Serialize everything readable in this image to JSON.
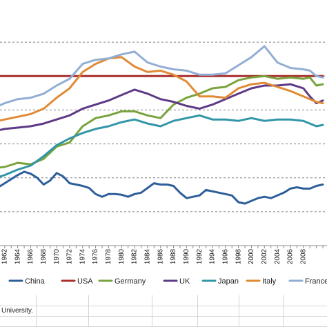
{
  "chart_data": {
    "type": "line",
    "title": "",
    "xlabel": "",
    "ylabel": "",
    "xlim": [
      1960,
      2011
    ],
    "x_tick_labels": [
      "1962",
      "1964",
      "1966",
      "1968",
      "1970",
      "1972",
      "1974",
      "1976",
      "1978",
      "1980",
      "1982",
      "1984",
      "1986",
      "1988",
      "1990",
      "1992",
      "1994",
      "1996",
      "1998",
      "2000",
      "2002",
      "2004",
      "2006",
      "2008"
    ],
    "grid": true,
    "legend_position": "bottom",
    "series": [
      {
        "name": "China",
        "color": "#2e5f9a",
        "x": [
          1960,
          1961,
          1962,
          1963,
          1964,
          1965,
          1966,
          1967,
          1968,
          1969,
          1970,
          1971,
          1972,
          1973,
          1974,
          1975,
          1976,
          1977,
          1978,
          1979,
          1980,
          1981,
          1982,
          1983,
          1984,
          1985,
          1986,
          1987,
          1988,
          1989,
          1990,
          1991,
          1992,
          1993,
          1994,
          1995,
          1996,
          1997,
          1998,
          1999,
          2000,
          2001,
          2002,
          2003,
          2004,
          2005,
          2006,
          2007,
          2008,
          2009,
          2010,
          2011
        ],
        "y": [
          3.1,
          3.6,
          4.2,
          4.8,
          5.4,
          5.9,
          5.6,
          5.0,
          4.0,
          4.6,
          5.7,
          5.2,
          4.2,
          4.0,
          3.8,
          3.5,
          2.6,
          2.2,
          2.6,
          2.6,
          2.5,
          2.2,
          2.6,
          2.8,
          3.5,
          4.2,
          4.0,
          4.0,
          3.8,
          2.8,
          2.0,
          2.2,
          2.4,
          3.2,
          3.0,
          2.8,
          2.6,
          2.4,
          1.4,
          1.2,
          1.6,
          2.0,
          2.2,
          2.0,
          2.4,
          2.8,
          3.4,
          3.6,
          3.4,
          3.4,
          3.8,
          4.0
        ]
      },
      {
        "name": "USA",
        "color": "#a8302e",
        "x": [
          1960,
          2011
        ],
        "y": [
          20,
          20
        ]
      },
      {
        "name": "Germany",
        "color": "#79a33d",
        "x": [
          1960,
          1962,
          1964,
          1966,
          1968,
          1970,
          1972,
          1974,
          1976,
          1978,
          1980,
          1982,
          1984,
          1986,
          1988,
          1990,
          1992,
          1994,
          1996,
          1998,
          2000,
          2002,
          2004,
          2006,
          2008,
          2009,
          2010,
          2011
        ],
        "y": [
          6.4,
          6.6,
          7.2,
          7.0,
          7.8,
          9.6,
          10.2,
          12.6,
          13.8,
          14.2,
          14.8,
          14.8,
          14.2,
          13.8,
          15.8,
          16.8,
          17.4,
          18.2,
          18.4,
          19.4,
          19.8,
          20.0,
          19.6,
          19.8,
          19.6,
          19.8,
          18.6,
          18.8
        ]
      },
      {
        "name": "UK",
        "color": "#5e3a86",
        "x": [
          1960,
          1962,
          1964,
          1966,
          1968,
          1970,
          1972,
          1974,
          1976,
          1978,
          1980,
          1982,
          1984,
          1986,
          1988,
          1990,
          1992,
          1994,
          1996,
          1998,
          2000,
          2002,
          2004,
          2006,
          2008,
          2009,
          2010,
          2011
        ],
        "y": [
          11.8,
          12.2,
          12.4,
          12.6,
          13.0,
          13.6,
          14.2,
          15.2,
          15.8,
          16.4,
          17.2,
          18.0,
          17.4,
          16.6,
          16.2,
          15.6,
          15.2,
          15.8,
          16.6,
          17.4,
          18.2,
          18.6,
          18.6,
          18.8,
          18.2,
          17.0,
          16.0,
          16.4
        ]
      },
      {
        "name": "Japan",
        "color": "#3296a8",
        "x": [
          1960,
          1962,
          1964,
          1966,
          1968,
          1970,
          1972,
          1974,
          1976,
          1978,
          1980,
          1982,
          1984,
          1986,
          1988,
          1990,
          1992,
          1994,
          1996,
          1998,
          2000,
          2002,
          2004,
          2006,
          2008,
          2009,
          2010,
          2011
        ],
        "y": [
          4.8,
          5.4,
          6.2,
          6.8,
          8.2,
          9.8,
          10.8,
          11.6,
          12.2,
          12.6,
          13.2,
          13.6,
          13.0,
          12.6,
          13.4,
          13.8,
          14.2,
          13.6,
          13.6,
          13.4,
          13.8,
          13.4,
          13.6,
          13.6,
          13.4,
          13.0,
          12.6,
          12.8
        ]
      },
      {
        "name": "Italy",
        "color": "#e08a35",
        "x": [
          1960,
          1962,
          1964,
          1966,
          1968,
          1970,
          1972,
          1974,
          1976,
          1978,
          1980,
          1982,
          1984,
          1986,
          1988,
          1990,
          1992,
          1994,
          1996,
          1998,
          2000,
          2002,
          2004,
          2006,
          2008,
          2009,
          2010,
          2011
        ],
        "y": [
          13.2,
          13.6,
          14.0,
          14.4,
          15.2,
          16.8,
          18.2,
          20.6,
          21.8,
          22.6,
          22.8,
          21.4,
          20.6,
          20.8,
          20.2,
          19.2,
          17.0,
          17.0,
          16.8,
          18.2,
          18.8,
          19.0,
          18.4,
          17.8,
          17.0,
          16.6,
          16.2,
          16.0
        ]
      },
      {
        "name": "France",
        "color": "#92aed4",
        "x": [
          1960,
          1962,
          1964,
          1966,
          1968,
          1970,
          1972,
          1974,
          1976,
          1978,
          1980,
          1982,
          1984,
          1986,
          1988,
          1990,
          1992,
          1994,
          1996,
          1998,
          2000,
          2002,
          2004,
          2006,
          2008,
          2009,
          2010,
          2011
        ],
        "y": [
          15.2,
          16.0,
          16.6,
          16.8,
          17.4,
          18.6,
          19.6,
          21.8,
          22.4,
          22.6,
          23.2,
          23.6,
          22.0,
          21.4,
          21.0,
          20.8,
          20.2,
          20.2,
          20.4,
          21.6,
          22.8,
          24.4,
          22.0,
          21.2,
          21.0,
          20.8,
          20.0,
          19.8
        ]
      }
    ]
  },
  "sheet": {
    "note": "University."
  }
}
